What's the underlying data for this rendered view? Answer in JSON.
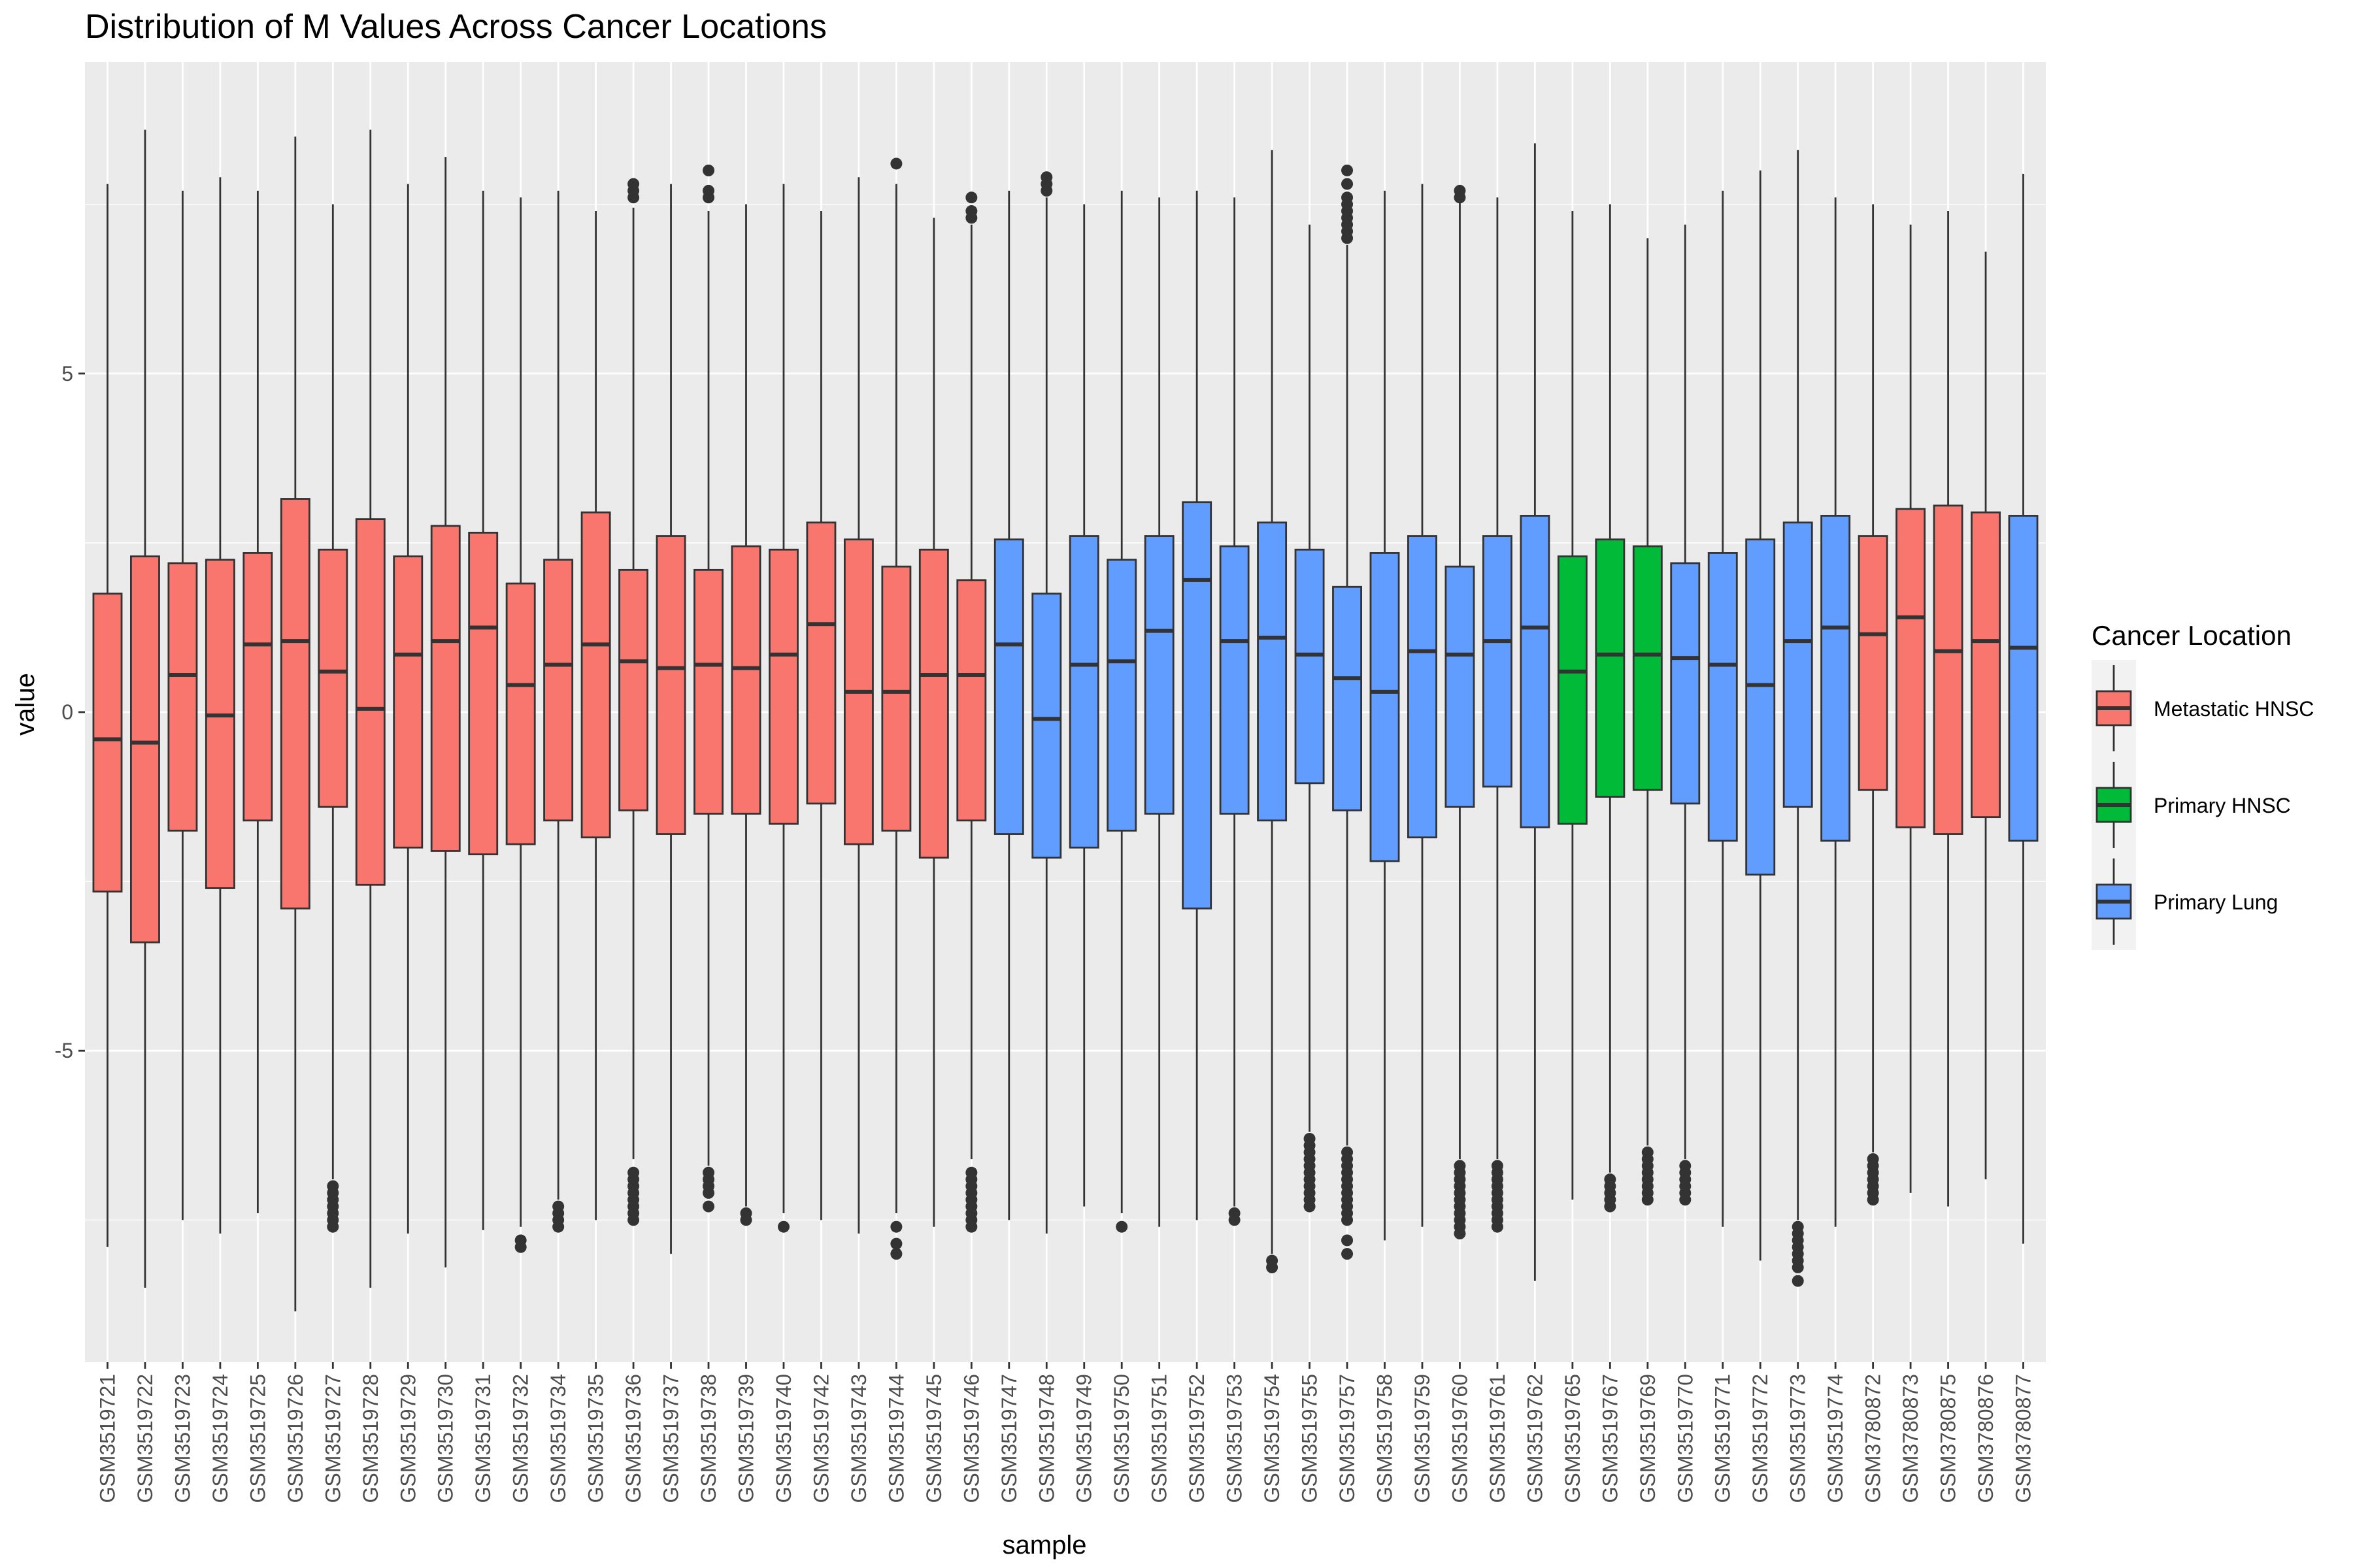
{
  "chart_data": {
    "type": "boxplot",
    "title": "Distribution of M Values Across Cancer Locations",
    "xlabel": "sample",
    "ylabel": "value",
    "ylim": [
      -9.6,
      9.6
    ],
    "yticks": [
      -5,
      0,
      5
    ],
    "grid": true,
    "legend": {
      "title": "Cancer Location",
      "position": "right",
      "entries": [
        {
          "name": "Metastatic HNSC",
          "color": "#F8766D"
        },
        {
          "name": "Primary HNSC",
          "color": "#00BA38"
        },
        {
          "name": "Primary Lung",
          "color": "#619CFF"
        }
      ]
    },
    "samples": [
      {
        "name": "GSM3519721",
        "group": "Metastatic HNSC",
        "lower": -7.9,
        "q1": -2.65,
        "median": -0.4,
        "q3": 1.75,
        "upper": 7.8,
        "outliers": []
      },
      {
        "name": "GSM3519722",
        "group": "Metastatic HNSC",
        "lower": -8.5,
        "q1": -3.4,
        "median": -0.45,
        "q3": 2.3,
        "upper": 8.6,
        "outliers": []
      },
      {
        "name": "GSM3519723",
        "group": "Metastatic HNSC",
        "lower": -7.5,
        "q1": -1.75,
        "median": 0.55,
        "q3": 2.2,
        "upper": 7.7,
        "outliers": []
      },
      {
        "name": "GSM3519724",
        "group": "Metastatic HNSC",
        "lower": -7.7,
        "q1": -2.6,
        "median": -0.05,
        "q3": 2.25,
        "upper": 7.9,
        "outliers": []
      },
      {
        "name": "GSM3519725",
        "group": "Metastatic HNSC",
        "lower": -7.4,
        "q1": -1.6,
        "median": 1.0,
        "q3": 2.35,
        "upper": 7.7,
        "outliers": []
      },
      {
        "name": "GSM3519726",
        "group": "Metastatic HNSC",
        "lower": -8.85,
        "q1": -2.9,
        "median": 1.05,
        "q3": 3.15,
        "upper": 8.5,
        "outliers": []
      },
      {
        "name": "GSM3519727",
        "group": "Metastatic HNSC",
        "lower": -6.9,
        "q1": -1.4,
        "median": 0.6,
        "q3": 2.4,
        "upper": 7.5,
        "outliers": [
          -7.0,
          -7.1,
          -7.2,
          -7.3,
          -7.4,
          -7.5,
          -7.6
        ]
      },
      {
        "name": "GSM3519728",
        "group": "Metastatic HNSC",
        "lower": -8.5,
        "q1": -2.55,
        "median": 0.05,
        "q3": 2.85,
        "upper": 8.6,
        "outliers": []
      },
      {
        "name": "GSM3519729",
        "group": "Metastatic HNSC",
        "lower": -7.7,
        "q1": -2.0,
        "median": 0.85,
        "q3": 2.3,
        "upper": 7.8,
        "outliers": []
      },
      {
        "name": "GSM3519730",
        "group": "Metastatic HNSC",
        "lower": -8.2,
        "q1": -2.05,
        "median": 1.05,
        "q3": 2.75,
        "upper": 8.2,
        "outliers": []
      },
      {
        "name": "GSM3519731",
        "group": "Metastatic HNSC",
        "lower": -7.65,
        "q1": -2.1,
        "median": 1.25,
        "q3": 2.65,
        "upper": 7.7,
        "outliers": []
      },
      {
        "name": "GSM3519732",
        "group": "Metastatic HNSC",
        "lower": -7.6,
        "q1": -1.95,
        "median": 0.4,
        "q3": 1.9,
        "upper": 7.6,
        "outliers": [
          -7.8,
          -7.9
        ]
      },
      {
        "name": "GSM3519734",
        "group": "Metastatic HNSC",
        "lower": -7.2,
        "q1": -1.6,
        "median": 0.7,
        "q3": 2.25,
        "upper": 7.7,
        "outliers": [
          -7.3,
          -7.4,
          -7.5,
          -7.6
        ]
      },
      {
        "name": "GSM3519735",
        "group": "Metastatic HNSC",
        "lower": -7.5,
        "q1": -1.85,
        "median": 1.0,
        "q3": 2.95,
        "upper": 7.4,
        "outliers": []
      },
      {
        "name": "GSM3519736",
        "group": "Metastatic HNSC",
        "lower": -6.6,
        "q1": -1.45,
        "median": 0.75,
        "q3": 2.1,
        "upper": 7.45,
        "outliers": [
          -6.8,
          -6.9,
          -7.0,
          -7.1,
          -7.2,
          -7.3,
          -7.4,
          -7.5,
          7.6,
          7.7,
          7.8
        ]
      },
      {
        "name": "GSM3519737",
        "group": "Metastatic HNSC",
        "lower": -8.0,
        "q1": -1.8,
        "median": 0.65,
        "q3": 2.6,
        "upper": 7.8,
        "outliers": []
      },
      {
        "name": "GSM3519738",
        "group": "Metastatic HNSC",
        "lower": -6.7,
        "q1": -1.5,
        "median": 0.7,
        "q3": 2.1,
        "upper": 7.4,
        "outliers": [
          -6.8,
          -6.9,
          -7.0,
          -7.1,
          -7.3,
          7.6,
          7.7,
          8.0
        ]
      },
      {
        "name": "GSM3519739",
        "group": "Metastatic HNSC",
        "lower": -7.3,
        "q1": -1.5,
        "median": 0.65,
        "q3": 2.45,
        "upper": 7.5,
        "outliers": [
          -7.4,
          -7.5
        ]
      },
      {
        "name": "GSM3519740",
        "group": "Metastatic HNSC",
        "lower": -7.4,
        "q1": -1.65,
        "median": 0.85,
        "q3": 2.4,
        "upper": 7.8,
        "outliers": [
          -7.6
        ]
      },
      {
        "name": "GSM3519742",
        "group": "Metastatic HNSC",
        "lower": -7.5,
        "q1": -1.35,
        "median": 1.3,
        "q3": 2.8,
        "upper": 7.4,
        "outliers": []
      },
      {
        "name": "GSM3519743",
        "group": "Metastatic HNSC",
        "lower": -7.7,
        "q1": -1.95,
        "median": 0.3,
        "q3": 2.55,
        "upper": 7.9,
        "outliers": []
      },
      {
        "name": "GSM3519744",
        "group": "Metastatic HNSC",
        "lower": -7.4,
        "q1": -1.75,
        "median": 0.3,
        "q3": 2.15,
        "upper": 7.8,
        "outliers": [
          -7.6,
          -7.85,
          -8.0,
          8.1
        ]
      },
      {
        "name": "GSM3519745",
        "group": "Metastatic HNSC",
        "lower": -7.6,
        "q1": -2.15,
        "median": 0.55,
        "q3": 2.4,
        "upper": 7.3,
        "outliers": []
      },
      {
        "name": "GSM3519746",
        "group": "Metastatic HNSC",
        "lower": -6.6,
        "q1": -1.6,
        "median": 0.55,
        "q3": 1.95,
        "upper": 7.2,
        "outliers": [
          -6.8,
          -6.9,
          -7.0,
          -7.1,
          -7.2,
          -7.3,
          -7.4,
          -7.5,
          -7.6,
          7.3,
          7.4,
          7.6
        ]
      },
      {
        "name": "GSM3519747",
        "group": "Primary Lung",
        "lower": -7.5,
        "q1": -1.8,
        "median": 1.0,
        "q3": 2.55,
        "upper": 7.7,
        "outliers": []
      },
      {
        "name": "GSM3519748",
        "group": "Primary Lung",
        "lower": -7.7,
        "q1": -2.15,
        "median": -0.1,
        "q3": 1.75,
        "upper": 7.6,
        "outliers": [
          7.7,
          7.8,
          7.9
        ]
      },
      {
        "name": "GSM3519749",
        "group": "Primary Lung",
        "lower": -7.3,
        "q1": -2.0,
        "median": 0.7,
        "q3": 2.6,
        "upper": 7.5,
        "outliers": []
      },
      {
        "name": "GSM3519750",
        "group": "Primary Lung",
        "lower": -7.4,
        "q1": -1.75,
        "median": 0.75,
        "q3": 2.25,
        "upper": 7.7,
        "outliers": [
          -7.6
        ]
      },
      {
        "name": "GSM3519751",
        "group": "Primary Lung",
        "lower": -7.6,
        "q1": -1.5,
        "median": 1.2,
        "q3": 2.6,
        "upper": 7.6,
        "outliers": []
      },
      {
        "name": "GSM3519752",
        "group": "Primary Lung",
        "lower": -7.5,
        "q1": -2.9,
        "median": 1.95,
        "q3": 3.1,
        "upper": 7.7,
        "outliers": []
      },
      {
        "name": "GSM3519753",
        "group": "Primary Lung",
        "lower": -7.3,
        "q1": -1.5,
        "median": 1.05,
        "q3": 2.45,
        "upper": 7.6,
        "outliers": [
          -7.4,
          -7.5
        ]
      },
      {
        "name": "GSM3519754",
        "group": "Primary Lung",
        "lower": -8.0,
        "q1": -1.6,
        "median": 1.1,
        "q3": 2.8,
        "upper": 8.3,
        "outliers": [
          -8.1,
          -8.2
        ]
      },
      {
        "name": "GSM3519755",
        "group": "Primary Lung",
        "lower": -6.2,
        "q1": -1.05,
        "median": 0.85,
        "q3": 2.4,
        "upper": 7.2,
        "outliers": [
          -6.3,
          -6.4,
          -6.5,
          -6.6,
          -6.7,
          -6.8,
          -6.9,
          -7.0,
          -7.1,
          -7.2,
          -7.3
        ]
      },
      {
        "name": "GSM3519757",
        "group": "Primary Lung",
        "lower": -6.4,
        "q1": -1.45,
        "median": 0.5,
        "q3": 1.85,
        "upper": 6.9,
        "outliers": [
          -6.5,
          -6.6,
          -6.7,
          -6.8,
          -6.9,
          -7.0,
          -7.1,
          -7.2,
          -7.3,
          -7.4,
          -7.5,
          -7.8,
          -8.0,
          7.0,
          7.1,
          7.2,
          7.3,
          7.4,
          7.5,
          7.6,
          7.8,
          8.0
        ]
      },
      {
        "name": "GSM3519758",
        "group": "Primary Lung",
        "lower": -7.8,
        "q1": -2.2,
        "median": 0.3,
        "q3": 2.35,
        "upper": 7.7,
        "outliers": []
      },
      {
        "name": "GSM3519759",
        "group": "Primary Lung",
        "lower": -7.6,
        "q1": -1.85,
        "median": 0.9,
        "q3": 2.6,
        "upper": 7.8,
        "outliers": []
      },
      {
        "name": "GSM3519760",
        "group": "Primary Lung",
        "lower": -6.6,
        "q1": -1.4,
        "median": 0.85,
        "q3": 2.15,
        "upper": 7.55,
        "outliers": [
          -6.7,
          -6.8,
          -6.9,
          -7.0,
          -7.1,
          -7.2,
          -7.3,
          -7.4,
          -7.5,
          -7.6,
          -7.7,
          7.6,
          7.7
        ]
      },
      {
        "name": "GSM3519761",
        "group": "Primary Lung",
        "lower": -6.6,
        "q1": -1.1,
        "median": 1.05,
        "q3": 2.6,
        "upper": 7.6,
        "outliers": [
          -6.7,
          -6.8,
          -6.9,
          -7.0,
          -7.1,
          -7.2,
          -7.3,
          -7.4,
          -7.5,
          -7.6
        ]
      },
      {
        "name": "GSM3519762",
        "group": "Primary Lung",
        "lower": -8.4,
        "q1": -1.7,
        "median": 1.25,
        "q3": 2.9,
        "upper": 8.4,
        "outliers": []
      },
      {
        "name": "GSM3519765",
        "group": "Primary HNSC",
        "lower": -7.2,
        "q1": -1.65,
        "median": 0.6,
        "q3": 2.3,
        "upper": 7.4,
        "outliers": []
      },
      {
        "name": "GSM3519767",
        "group": "Primary HNSC",
        "lower": -6.8,
        "q1": -1.25,
        "median": 0.85,
        "q3": 2.55,
        "upper": 7.5,
        "outliers": [
          -6.9,
          -7.0,
          -7.1,
          -7.2,
          -7.3
        ]
      },
      {
        "name": "GSM3519769",
        "group": "Primary HNSC",
        "lower": -6.4,
        "q1": -1.15,
        "median": 0.85,
        "q3": 2.45,
        "upper": 7.0,
        "outliers": [
          -6.5,
          -6.6,
          -6.7,
          -6.8,
          -6.9,
          -7.0,
          -7.1,
          -7.2
        ]
      },
      {
        "name": "GSM3519770",
        "group": "Primary Lung",
        "lower": -6.6,
        "q1": -1.35,
        "median": 0.8,
        "q3": 2.2,
        "upper": 7.2,
        "outliers": [
          -6.7,
          -6.8,
          -6.9,
          -7.0,
          -7.1,
          -7.2
        ]
      },
      {
        "name": "GSM3519771",
        "group": "Primary Lung",
        "lower": -7.6,
        "q1": -1.9,
        "median": 0.7,
        "q3": 2.35,
        "upper": 7.7,
        "outliers": []
      },
      {
        "name": "GSM3519772",
        "group": "Primary Lung",
        "lower": -8.1,
        "q1": -2.4,
        "median": 0.4,
        "q3": 2.55,
        "upper": 8.0,
        "outliers": []
      },
      {
        "name": "GSM3519773",
        "group": "Primary Lung",
        "lower": -7.5,
        "q1": -1.4,
        "median": 1.05,
        "q3": 2.8,
        "upper": 8.3,
        "outliers": [
          -7.6,
          -7.7,
          -7.8,
          -7.9,
          -8.0,
          -8.1,
          -8.2,
          -8.4
        ]
      },
      {
        "name": "GSM3519774",
        "group": "Primary Lung",
        "lower": -7.6,
        "q1": -1.9,
        "median": 1.25,
        "q3": 2.9,
        "upper": 7.6,
        "outliers": []
      },
      {
        "name": "GSM3780872",
        "group": "Metastatic HNSC",
        "lower": -6.5,
        "q1": -1.15,
        "median": 1.15,
        "q3": 2.6,
        "upper": 7.5,
        "outliers": [
          -6.6,
          -6.7,
          -6.8,
          -6.9,
          -7.0,
          -7.1,
          -7.2
        ]
      },
      {
        "name": "GSM3780873",
        "group": "Metastatic HNSC",
        "lower": -7.1,
        "q1": -1.7,
        "median": 1.4,
        "q3": 3.0,
        "upper": 7.2,
        "outliers": []
      },
      {
        "name": "GSM3780875",
        "group": "Metastatic HNSC",
        "lower": -7.3,
        "q1": -1.8,
        "median": 0.9,
        "q3": 3.05,
        "upper": 7.4,
        "outliers": []
      },
      {
        "name": "GSM3780876",
        "group": "Metastatic HNSC",
        "lower": -6.9,
        "q1": -1.55,
        "median": 1.05,
        "q3": 2.95,
        "upper": 6.8,
        "outliers": []
      },
      {
        "name": "GSM3780877",
        "group": "Primary Lung",
        "lower": -7.85,
        "q1": -1.9,
        "median": 0.95,
        "q3": 2.9,
        "upper": 7.95,
        "outliers": []
      }
    ]
  }
}
